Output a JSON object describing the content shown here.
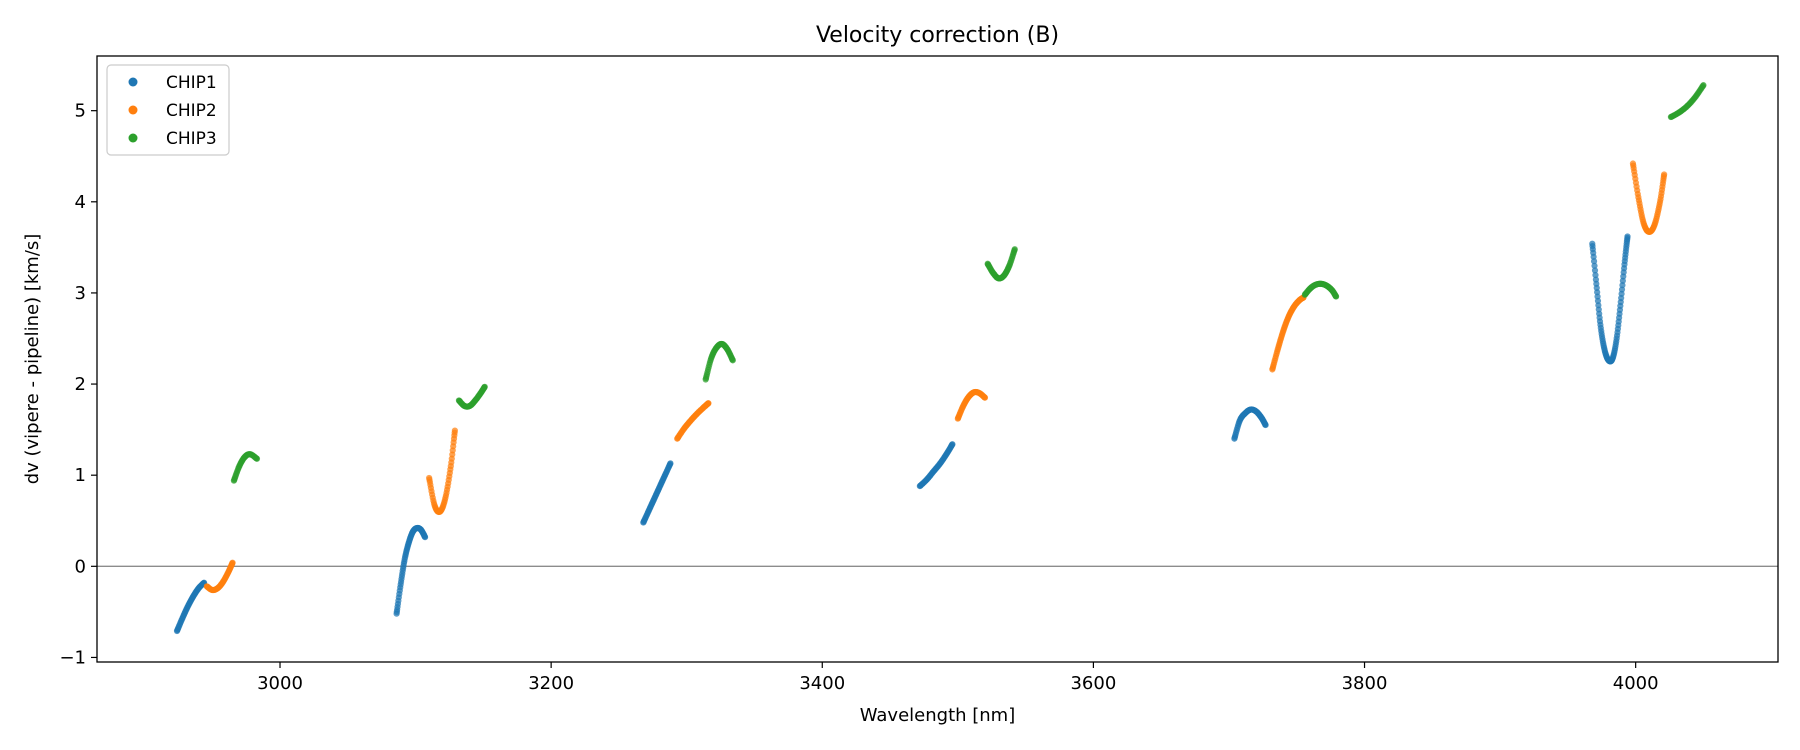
{
  "chart_data": {
    "type": "scatter",
    "title": "Velocity correction (B)",
    "xlabel": "Wavelength [nm]",
    "ylabel": "dv (vipere - pipeline) [km/s]",
    "xlim": [
      2865,
      4105
    ],
    "ylim": [
      -1.05,
      5.6
    ],
    "xticks": [
      3000,
      3200,
      3400,
      3600,
      3800,
      4000
    ],
    "yticks": [
      -1,
      0,
      1,
      2,
      3,
      4,
      5
    ],
    "xtick_labels": [
      "3000",
      "3200",
      "3400",
      "3600",
      "3800",
      "4000"
    ],
    "ytick_labels": [
      "−1",
      "0",
      "1",
      "2",
      "3",
      "4",
      "5"
    ],
    "reference_line_y": 0,
    "grid": false,
    "legend_position": "upper left",
    "series": [
      {
        "name": "CHIP1",
        "color": "#1f77b4",
        "segments": [
          {
            "x": [
              2924,
              2928,
              2932,
              2936,
              2940,
              2944
            ],
            "y": [
              -0.71,
              -0.57,
              -0.44,
              -0.33,
              -0.24,
              -0.18
            ]
          },
          {
            "x": [
              3086,
              3089,
              3092,
              3095,
              3098,
              3101,
              3104,
              3107
            ],
            "y": [
              -0.52,
              -0.2,
              0.08,
              0.26,
              0.38,
              0.42,
              0.4,
              0.32
            ]
          },
          {
            "x": [
              3268,
              3272,
              3276,
              3280,
              3284,
              3288
            ],
            "y": [
              0.48,
              0.61,
              0.74,
              0.87,
              1.0,
              1.13
            ]
          },
          {
            "x": [
              3472,
              3477,
              3482,
              3487,
              3492,
              3496
            ],
            "y": [
              0.88,
              0.95,
              1.04,
              1.13,
              1.24,
              1.34
            ]
          },
          {
            "x": [
              3704,
              3708,
              3712,
              3716,
              3720,
              3724,
              3727
            ],
            "y": [
              1.4,
              1.6,
              1.68,
              1.72,
              1.7,
              1.63,
              1.55
            ]
          },
          {
            "x": [
              3968,
              3971,
              3974,
              3977,
              3980,
              3983,
              3986,
              3989,
              3992,
              3994
            ],
            "y": [
              3.54,
              3.1,
              2.65,
              2.38,
              2.26,
              2.28,
              2.5,
              2.9,
              3.35,
              3.62
            ]
          }
        ]
      },
      {
        "name": "CHIP2",
        "color": "#ff7f0e",
        "segments": [
          {
            "x": [
              2946,
              2950,
              2954,
              2958,
              2962,
              2965
            ],
            "y": [
              -0.22,
              -0.26,
              -0.24,
              -0.17,
              -0.06,
              0.04
            ]
          },
          {
            "x": [
              3110,
              3114,
              3118,
              3122,
              3126,
              3129
            ],
            "y": [
              0.97,
              0.67,
              0.6,
              0.75,
              1.1,
              1.49
            ]
          },
          {
            "x": [
              3293,
              3298,
              3303,
              3308,
              3313,
              3316
            ],
            "y": [
              1.4,
              1.51,
              1.6,
              1.68,
              1.75,
              1.79
            ]
          },
          {
            "x": [
              3500,
              3504,
              3508,
              3512,
              3516,
              3520
            ],
            "y": [
              1.62,
              1.76,
              1.86,
              1.91,
              1.9,
              1.85
            ]
          },
          {
            "x": [
              3732,
              3736,
              3740,
              3744,
              3748,
              3752,
              3755
            ],
            "y": [
              2.16,
              2.38,
              2.58,
              2.74,
              2.85,
              2.92,
              2.95
            ]
          },
          {
            "x": [
              3998,
              4002,
              4006,
              4010,
              4014,
              4018,
              4021
            ],
            "y": [
              4.42,
              4.05,
              3.76,
              3.67,
              3.75,
              4.0,
              4.3
            ]
          }
        ]
      },
      {
        "name": "CHIP3",
        "color": "#2ca02c",
        "segments": [
          {
            "x": [
              2966,
              2970,
              2974,
              2978,
              2983
            ],
            "y": [
              0.94,
              1.1,
              1.2,
              1.23,
              1.18
            ]
          },
          {
            "x": [
              3132,
              3136,
              3140,
              3144,
              3148,
              3151
            ],
            "y": [
              1.82,
              1.76,
              1.76,
              1.82,
              1.9,
              1.97
            ]
          },
          {
            "x": [
              3314,
              3318,
              3322,
              3326,
              3330,
              3334
            ],
            "y": [
              2.05,
              2.28,
              2.4,
              2.44,
              2.38,
              2.26
            ]
          },
          {
            "x": [
              3522,
              3526,
              3530,
              3534,
              3538,
              3542
            ],
            "y": [
              3.32,
              3.22,
              3.16,
              3.19,
              3.3,
              3.48
            ]
          },
          {
            "x": [
              3756,
              3760,
              3764,
              3768,
              3772,
              3776,
              3779
            ],
            "y": [
              2.98,
              3.05,
              3.09,
              3.1,
              3.08,
              3.03,
              2.96
            ]
          },
          {
            "x": [
              4026,
              4032,
              4038,
              4044,
              4050
            ],
            "y": [
              4.93,
              4.98,
              5.05,
              5.15,
              5.28
            ]
          }
        ]
      }
    ]
  }
}
